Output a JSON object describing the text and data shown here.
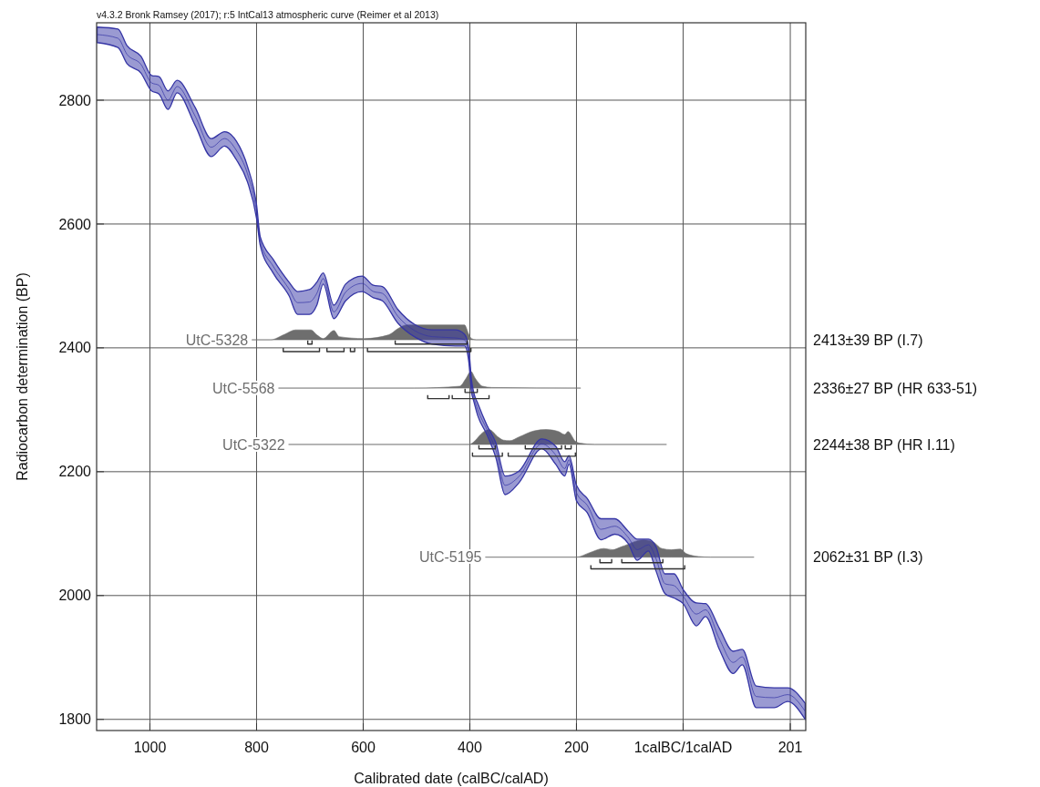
{
  "chart_data": {
    "type": "line",
    "annotations": [
      "v4.3.2 Bronk Ramsey (2017); r:5 IntCal13 atmospheric curve (Reimer et al 2013)",
      "2413±39 BP (I.7)",
      "2336±27 BP (HR 633-51)",
      "2244±38 BP (HR I.11)",
      "2062±31 BP (I.3)"
    ],
    "xlabel": "Calibrated date (calBC/calAD)",
    "ylabel": "Radiocarbon determination (BP)",
    "xlim": [
      -1100,
      230
    ],
    "ylim": [
      1782,
      2925
    ],
    "xticks": [
      {
        "value": -1000,
        "label": "1000"
      },
      {
        "value": -800,
        "label": "800"
      },
      {
        "value": -600,
        "label": "600"
      },
      {
        "value": -400,
        "label": "400"
      },
      {
        "value": -200,
        "label": "200"
      },
      {
        "value": 0,
        "label": "1calBC/1calAD"
      },
      201
    ],
    "yticks": [
      1800,
      2000,
      2200,
      2400,
      2600,
      2800
    ],
    "grid": true,
    "series": [
      {
        "color": "#3535a5",
        "x": [
          -1099,
          -1060,
          -1043,
          -1017,
          -997,
          -983,
          -966,
          -949,
          -915,
          -885,
          -860,
          -838,
          -817,
          -800,
          -793,
          -769,
          -739,
          -723,
          -701,
          -687,
          -675,
          -655,
          -633,
          -602,
          -581,
          -564,
          -535,
          -504,
          -470,
          -427,
          -410,
          -402,
          -397,
          -393,
          -385,
          -368,
          -351,
          -334,
          -308,
          -265,
          -239,
          -222,
          -214,
          -200,
          -180,
          -154,
          -128,
          -103,
          -86,
          -65,
          -51,
          -34,
          -17,
          0,
          25,
          42,
          68,
          94,
          111,
          137,
          171,
          196,
          229
        ],
        "values": [
          2906,
          2900,
          2874,
          2858,
          2828,
          2824,
          2800,
          2822,
          2774,
          2724,
          2738,
          2719,
          2681,
          2620,
          2572,
          2532,
          2495,
          2473,
          2474,
          2488,
          2512,
          2458,
          2490,
          2504,
          2491,
          2488,
          2451,
          2428,
          2418,
          2416,
          2413,
          2389,
          2339,
          2322,
          2300,
          2268,
          2234,
          2178,
          2192,
          2245,
          2227,
          2205,
          2219,
          2166,
          2146,
          2107,
          2112,
          2094,
          2074,
          2082,
          2060,
          2019,
          2016,
          1999,
          1970,
          1977,
          1930,
          1892,
          1901,
          1837,
          1835,
          1840,
          1813
        ],
        "upper": [
          2918,
          2915,
          2888,
          2871,
          2840,
          2838,
          2815,
          2832,
          2788,
          2738,
          2749,
          2734,
          2693,
          2631,
          2579,
          2543,
          2506,
          2491,
          2494,
          2506,
          2521,
          2469,
          2503,
          2516,
          2501,
          2499,
          2462,
          2438,
          2429,
          2429,
          2422,
          2399,
          2349,
          2329,
          2310,
          2275,
          2246,
          2193,
          2201,
          2253,
          2241,
          2216,
          2226,
          2178,
          2157,
          2124,
          2124,
          2104,
          2091,
          2091,
          2079,
          2035,
          2035,
          2010,
          1988,
          1987,
          1947,
          1910,
          1913,
          1854,
          1851,
          1851,
          1826
        ],
        "lower": [
          2893,
          2885,
          2859,
          2844,
          2815,
          2810,
          2785,
          2812,
          2759,
          2709,
          2726,
          2704,
          2668,
          2609,
          2565,
          2521,
          2484,
          2454,
          2454,
          2469,
          2503,
          2447,
          2476,
          2491,
          2481,
          2476,
          2440,
          2418,
          2406,
          2403,
          2403,
          2378,
          2329,
          2315,
          2290,
          2260,
          2222,
          2163,
          2182,
          2237,
          2212,
          2193,
          2212,
          2153,
          2134,
          2090,
          2099,
          2084,
          2057,
          2072,
          2040,
          2003,
          1996,
          1987,
          1951,
          1966,
          1913,
          1874,
          1888,
          1819,
          1819,
          1829,
          1800
        ]
      },
      {
        "type": "area",
        "name": "UtC-5328",
        "color": "#6e6e6e",
        "x": [
          -809,
          -774,
          -747,
          -727,
          -713,
          -698,
          -687,
          -675,
          -655,
          -645,
          -598,
          -552,
          -535,
          -518,
          -410,
          -402,
          -397,
          -388,
          -197
        ],
        "values": [
          2413,
          2413,
          2422,
          2429,
          2429,
          2429,
          2421,
          2415,
          2428,
          2418,
          2415,
          2421,
          2431,
          2437,
          2437,
          2422,
          2415,
          2413,
          2413
        ]
      },
      {
        "type": "area",
        "name": "UtC-5568",
        "color": "#6e6e6e",
        "x": [
          -759,
          -504,
          -419,
          -407,
          -398,
          -390,
          -376,
          -359,
          -192
        ],
        "values": [
          2335,
          2335,
          2338,
          2351,
          2362,
          2351,
          2338,
          2336,
          2335
        ]
      },
      {
        "type": "area",
        "name": "UtC-5322",
        "color": "#6e6e6e",
        "x": [
          -740,
          -402,
          -371,
          -364,
          -347,
          -337,
          -325,
          -308,
          -279,
          -257,
          -234,
          -222,
          -216,
          -202,
          -193,
          -166,
          -31
        ],
        "values": [
          2244,
          2244,
          2266,
          2268,
          2256,
          2251,
          2250,
          2256,
          2266,
          2268,
          2265,
          2260,
          2265,
          2249,
          2246,
          2244,
          2244
        ]
      },
      {
        "type": "area",
        "name": "UtC-5195",
        "color": "#6e6e6e",
        "x": [
          -371,
          -200,
          -176,
          -149,
          -132,
          -115,
          -74,
          -57,
          -40,
          -22,
          -5,
          5,
          29,
          51,
          133
        ],
        "values": [
          2062,
          2062,
          2069,
          2076,
          2074,
          2079,
          2090,
          2087,
          2076,
          2074,
          2075,
          2068,
          2063,
          2062,
          2062
        ]
      },
      {
        "type": "line",
        "color": "#333333",
        "x": [
          -704,
          -696
        ],
        "values": [
          2406,
          2406
        ]
      },
      {
        "type": "line",
        "color": "#333333",
        "x": [
          -540,
          -405
        ],
        "values": [
          2406,
          2406
        ]
      },
      {
        "type": "line",
        "color": "#333333",
        "x": [
          -750,
          -682
        ],
        "values": [
          2394,
          2394
        ]
      },
      {
        "type": "line",
        "color": "#333333",
        "x": [
          -668,
          -636
        ],
        "values": [
          2394,
          2394
        ]
      },
      {
        "type": "line",
        "color": "#333333",
        "x": [
          -624,
          -616
        ],
        "values": [
          2394,
          2394
        ]
      },
      {
        "type": "line",
        "color": "#333333",
        "x": [
          -592,
          -398
        ],
        "values": [
          2394,
          2394
        ]
      },
      {
        "type": "line",
        "color": "#333333",
        "x": [
          -409,
          -386
        ],
        "values": [
          2328,
          2328
        ]
      },
      {
        "type": "line",
        "color": "#333333",
        "x": [
          -479,
          -439
        ],
        "values": [
          2318,
          2318
        ]
      },
      {
        "type": "line",
        "color": "#333333",
        "x": [
          -433,
          -364
        ],
        "values": [
          2318,
          2318
        ]
      },
      {
        "type": "line",
        "color": "#333333",
        "x": [
          -383,
          -352
        ],
        "values": [
          2237,
          2237
        ]
      },
      {
        "type": "line",
        "color": "#333333",
        "x": [
          -296,
          -228
        ],
        "values": [
          2237,
          2237
        ]
      },
      {
        "type": "line",
        "color": "#333333",
        "x": [
          -221,
          -210
        ],
        "values": [
          2237,
          2237
        ]
      },
      {
        "type": "line",
        "color": "#333333",
        "x": [
          -395,
          -339
        ],
        "values": [
          2225,
          2225
        ]
      },
      {
        "type": "line",
        "color": "#333333",
        "x": [
          -328,
          -202
        ],
        "values": [
          2225,
          2225
        ]
      },
      {
        "type": "line",
        "color": "#333333",
        "x": [
          -156,
          -134
        ],
        "values": [
          2053,
          2053
        ]
      },
      {
        "type": "line",
        "color": "#333333",
        "x": [
          -115,
          -38
        ],
        "values": [
          2053,
          2053
        ]
      },
      {
        "type": "line",
        "color": "#333333",
        "x": [
          -173,
          3
        ],
        "values": [
          2043,
          2043
        ]
      }
    ]
  }
}
